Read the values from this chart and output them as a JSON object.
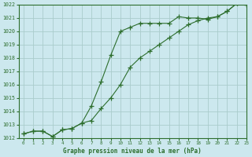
{
  "title": "Graphe pression niveau de la mer (hPa)",
  "bg_color": "#cce8ee",
  "grid_color": "#aacccc",
  "line_color": "#2d6e2d",
  "marker_color": "#2d6e2d",
  "series1_x": [
    0,
    1,
    2,
    3,
    4,
    5,
    6,
    7,
    8,
    9,
    10,
    11,
    12,
    13,
    14,
    15,
    16,
    17,
    18,
    19,
    20,
    21,
    22,
    23
  ],
  "series1_y": [
    1012.3,
    1012.5,
    1012.5,
    1012.1,
    1012.6,
    1012.7,
    1013.1,
    1013.3,
    1014.2,
    1015.0,
    1016.0,
    1017.3,
    1018.0,
    1018.5,
    1019.0,
    1019.5,
    1020.0,
    1020.5,
    1020.8,
    1021.0,
    1021.1,
    1021.5,
    1022.1,
    1022.0
  ],
  "series2_x": [
    0,
    1,
    2,
    3,
    4,
    5,
    6,
    7,
    8,
    9,
    10,
    11,
    12,
    13,
    14,
    15,
    16,
    17,
    18,
    19,
    20,
    21,
    22,
    23
  ],
  "series2_y": [
    1012.3,
    1012.5,
    1012.5,
    1012.1,
    1012.6,
    1012.7,
    1013.1,
    1014.4,
    1016.2,
    1018.2,
    1020.0,
    1020.3,
    1020.6,
    1020.6,
    1020.6,
    1020.6,
    1021.1,
    1021.0,
    1021.0,
    1020.9,
    1021.1,
    1021.5,
    1022.1,
    1022.0
  ],
  "ylim": [
    1012,
    1022
  ],
  "xlim": [
    -0.5,
    23
  ],
  "yticks": [
    1012,
    1013,
    1014,
    1015,
    1016,
    1017,
    1018,
    1019,
    1020,
    1021,
    1022
  ],
  "xticks": [
    0,
    1,
    2,
    3,
    4,
    5,
    6,
    7,
    8,
    9,
    10,
    11,
    12,
    13,
    14,
    15,
    16,
    17,
    18,
    19,
    20,
    21,
    22,
    23
  ]
}
